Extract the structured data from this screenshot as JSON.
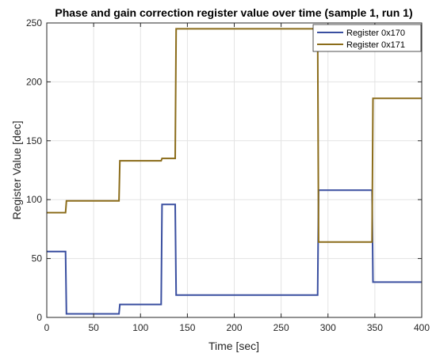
{
  "chart_data": {
    "type": "line",
    "title": "Phase and gain correction register value over time (sample 1, run 1)",
    "xlabel": "Time [sec]",
    "ylabel": "Register Value [dec]",
    "xlim": [
      0,
      400
    ],
    "ylim": [
      0,
      250
    ],
    "xticks": [
      0,
      50,
      100,
      150,
      200,
      250,
      300,
      350,
      400
    ],
    "yticks": [
      0,
      50,
      100,
      150,
      200,
      250
    ],
    "grid": true,
    "legend_position": "top-right",
    "line_style": "step",
    "series": [
      {
        "name": "Register 0x170",
        "color": "#3a4fa0",
        "points": [
          [
            0,
            56
          ],
          [
            20,
            56
          ],
          [
            21,
            3
          ],
          [
            77,
            3
          ],
          [
            78,
            11
          ],
          [
            122,
            11
          ],
          [
            123,
            96
          ],
          [
            137,
            96
          ],
          [
            138,
            19
          ],
          [
            289,
            19
          ],
          [
            290,
            108
          ],
          [
            347,
            108
          ],
          [
            348,
            30
          ],
          [
            400,
            30
          ]
        ]
      },
      {
        "name": "Register 0x171",
        "color": "#8b6c1a",
        "points": [
          [
            0,
            89
          ],
          [
            20,
            89
          ],
          [
            21,
            99
          ],
          [
            77,
            99
          ],
          [
            78,
            133
          ],
          [
            122,
            133
          ],
          [
            123,
            135
          ],
          [
            137,
            135
          ],
          [
            138,
            245
          ],
          [
            289,
            245
          ],
          [
            290,
            64
          ],
          [
            347,
            64
          ],
          [
            348,
            186
          ],
          [
            400,
            186
          ]
        ]
      }
    ]
  }
}
